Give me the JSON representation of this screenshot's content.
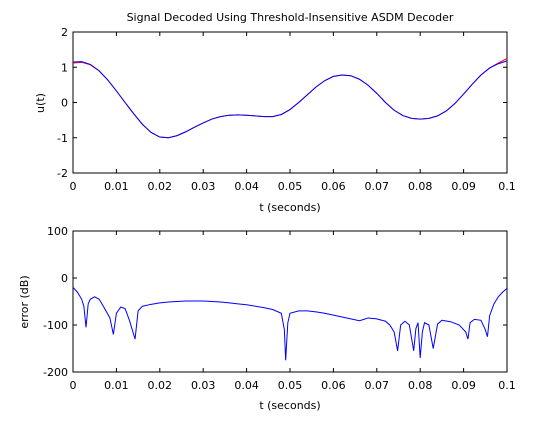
{
  "chart_data": [
    {
      "type": "line",
      "title": "Signal Decoded Using Threshold-Insensitive ASDM Decoder",
      "xlabel": "t (seconds)",
      "ylabel": "u(t)",
      "xlim": [
        0,
        0.1
      ],
      "ylim": [
        -2,
        2
      ],
      "xticks": [
        "0",
        "0.01",
        "0.02",
        "0.03",
        "0.04",
        "0.05",
        "0.06",
        "0.07",
        "0.08",
        "0.09",
        "0.1"
      ],
      "yticks": [
        "-2",
        "-1",
        "0",
        "1",
        "2"
      ],
      "grid": false,
      "series": [
        {
          "color": "#ff0000",
          "x": [
            0,
            0.002,
            0.004,
            0.006,
            0.008,
            0.01,
            0.012,
            0.014,
            0.016,
            0.018,
            0.02,
            0.022,
            0.024,
            0.026,
            0.028,
            0.03,
            0.032,
            0.034,
            0.036,
            0.038,
            0.04,
            0.042,
            0.044,
            0.046,
            0.048,
            0.05,
            0.052,
            0.054,
            0.056,
            0.058,
            0.06,
            0.062,
            0.064,
            0.066,
            0.068,
            0.07,
            0.072,
            0.074,
            0.076,
            0.078,
            0.08,
            0.082,
            0.084,
            0.086,
            0.088,
            0.09,
            0.092,
            0.094,
            0.096,
            0.098,
            0.1
          ],
          "y": [
            1.12,
            1.14,
            1.07,
            0.9,
            0.64,
            0.33,
            0.0,
            -0.32,
            -0.62,
            -0.85,
            -0.98,
            -1.0,
            -0.94,
            -0.83,
            -0.7,
            -0.58,
            -0.47,
            -0.4,
            -0.36,
            -0.35,
            -0.36,
            -0.38,
            -0.4,
            -0.4,
            -0.34,
            -0.2,
            0.0,
            0.22,
            0.44,
            0.62,
            0.74,
            0.78,
            0.76,
            0.66,
            0.49,
            0.26,
            0.0,
            -0.22,
            -0.37,
            -0.45,
            -0.47,
            -0.45,
            -0.38,
            -0.24,
            -0.03,
            0.24,
            0.52,
            0.78,
            0.98,
            1.12,
            1.25
          ]
        },
        {
          "color": "#0000ff",
          "x": [
            0,
            0.002,
            0.004,
            0.006,
            0.008,
            0.01,
            0.012,
            0.014,
            0.016,
            0.018,
            0.02,
            0.022,
            0.024,
            0.026,
            0.028,
            0.03,
            0.032,
            0.034,
            0.036,
            0.038,
            0.04,
            0.042,
            0.044,
            0.046,
            0.048,
            0.05,
            0.052,
            0.054,
            0.056,
            0.058,
            0.06,
            0.062,
            0.064,
            0.066,
            0.068,
            0.07,
            0.072,
            0.074,
            0.076,
            0.078,
            0.08,
            0.082,
            0.084,
            0.086,
            0.088,
            0.09,
            0.092,
            0.094,
            0.096,
            0.098,
            0.1
          ],
          "y": [
            1.15,
            1.16,
            1.08,
            0.9,
            0.64,
            0.33,
            0.0,
            -0.32,
            -0.62,
            -0.85,
            -0.98,
            -1.0,
            -0.94,
            -0.83,
            -0.7,
            -0.58,
            -0.47,
            -0.4,
            -0.36,
            -0.35,
            -0.36,
            -0.38,
            -0.4,
            -0.4,
            -0.34,
            -0.2,
            0.0,
            0.22,
            0.44,
            0.62,
            0.74,
            0.78,
            0.76,
            0.66,
            0.49,
            0.26,
            0.0,
            -0.22,
            -0.37,
            -0.45,
            -0.47,
            -0.45,
            -0.38,
            -0.24,
            -0.03,
            0.24,
            0.52,
            0.78,
            0.98,
            1.1,
            1.18
          ]
        }
      ]
    },
    {
      "type": "line",
      "title": "",
      "xlabel": "t (seconds)",
      "ylabel": "error (dB)",
      "xlim": [
        0,
        0.1
      ],
      "ylim": [
        -200,
        100
      ],
      "xticks": [
        "0",
        "0.01",
        "0.02",
        "0.03",
        "0.04",
        "0.05",
        "0.06",
        "0.07",
        "0.08",
        "0.09",
        "0.1"
      ],
      "yticks": [
        "-200",
        "-100",
        "0",
        "100"
      ],
      "grid": false,
      "series": [
        {
          "color": "#0000ff",
          "x": [
            0,
            0.001,
            0.002,
            0.0025,
            0.003,
            0.0035,
            0.004,
            0.005,
            0.006,
            0.007,
            0.0085,
            0.0093,
            0.01,
            0.011,
            0.012,
            0.013,
            0.0143,
            0.015,
            0.016,
            0.018,
            0.02,
            0.022,
            0.024,
            0.026,
            0.028,
            0.03,
            0.032,
            0.034,
            0.036,
            0.038,
            0.04,
            0.042,
            0.044,
            0.046,
            0.048,
            0.0487,
            0.049,
            0.0495,
            0.05,
            0.052,
            0.054,
            0.056,
            0.058,
            0.06,
            0.062,
            0.064,
            0.066,
            0.067,
            0.068,
            0.07,
            0.072,
            0.073,
            0.074,
            0.0748,
            0.0755,
            0.0765,
            0.0775,
            0.0785,
            0.079,
            0.0795,
            0.08,
            0.0805,
            0.081,
            0.082,
            0.083,
            0.084,
            0.085,
            0.087,
            0.089,
            0.0905,
            0.091,
            0.0915,
            0.0925,
            0.094,
            0.095,
            0.0955,
            0.096,
            0.097,
            0.098,
            0.099,
            0.1
          ],
          "y": [
            -20,
            -30,
            -45,
            -60,
            -105,
            -55,
            -45,
            -40,
            -45,
            -60,
            -85,
            -120,
            -75,
            -62,
            -65,
            -90,
            -130,
            -70,
            -60,
            -56,
            -53,
            -51,
            -50,
            -49,
            -49,
            -49,
            -50,
            -51,
            -53,
            -55,
            -57,
            -60,
            -63,
            -67,
            -75,
            -110,
            -175,
            -95,
            -75,
            -70,
            -70,
            -72,
            -75,
            -79,
            -83,
            -87,
            -91,
            -88,
            -85,
            -87,
            -92,
            -100,
            -115,
            -155,
            -100,
            -92,
            -100,
            -155,
            -108,
            -95,
            -170,
            -115,
            -95,
            -100,
            -150,
            -98,
            -90,
            -93,
            -100,
            -115,
            -130,
            -95,
            -88,
            -90,
            -110,
            -125,
            -80,
            -55,
            -40,
            -30,
            -22
          ]
        }
      ]
    }
  ]
}
